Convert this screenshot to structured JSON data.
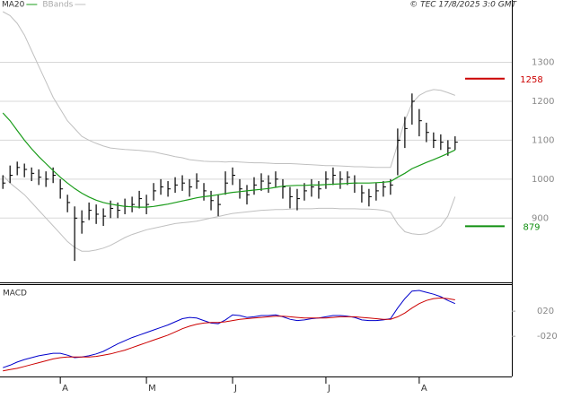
{
  "chart_data": [
    {
      "type": "ohlc",
      "credit": "© TEC 17/8/2025 3:0 GMT",
      "xlim": [
        -0.4,
        70.9
      ],
      "xticks": [
        {
          "value": 8,
          "label": "A"
        },
        {
          "value": 20,
          "label": "M"
        },
        {
          "value": 32,
          "label": "J"
        },
        {
          "value": 45,
          "label": "J"
        },
        {
          "value": 58,
          "label": "A"
        }
      ],
      "ylim": [
        735,
        1460
      ],
      "yticks": [
        900,
        1000,
        1100,
        1200,
        1300
      ],
      "grid": true,
      "color": "#000000",
      "high": [
        1010,
        1035,
        1045,
        1040,
        1030,
        1025,
        1020,
        1030,
        1000,
        960,
        930,
        920,
        940,
        935,
        925,
        945,
        940,
        950,
        955,
        970,
        960,
        990,
        1000,
        995,
        1005,
        1010,
        1000,
        1015,
        990,
        970,
        960,
        1020,
        1030,
        1000,
        985,
        1005,
        1015,
        1010,
        1020,
        1000,
        980,
        975,
        990,
        1000,
        995,
        1020,
        1030,
        1020,
        1020,
        1010,
        985,
        975,
        990,
        995,
        1000,
        1130,
        1160,
        1220,
        1180,
        1145,
        1120,
        1115,
        1100,
        1110
      ],
      "low": [
        975,
        990,
        1010,
        1005,
        995,
        985,
        980,
        990,
        950,
        915,
        790,
        860,
        895,
        885,
        880,
        900,
        900,
        910,
        915,
        925,
        910,
        945,
        960,
        955,
        965,
        970,
        955,
        975,
        945,
        920,
        905,
        960,
        985,
        950,
        935,
        960,
        970,
        965,
        980,
        950,
        925,
        920,
        945,
        955,
        950,
        975,
        985,
        975,
        985,
        965,
        940,
        930,
        945,
        955,
        960,
        1010,
        1080,
        1140,
        1110,
        1095,
        1080,
        1075,
        1060,
        1075
      ],
      "close": [
        990,
        1010,
        1030,
        1025,
        1015,
        1005,
        1000,
        1010,
        975,
        940,
        900,
        890,
        920,
        910,
        905,
        925,
        920,
        930,
        935,
        950,
        935,
        970,
        980,
        975,
        985,
        990,
        980,
        995,
        970,
        945,
        935,
        990,
        1010,
        975,
        960,
        985,
        995,
        990,
        1000,
        980,
        955,
        950,
        970,
        980,
        975,
        1000,
        1010,
        1000,
        1005,
        990,
        965,
        955,
        970,
        980,
        985,
        1100,
        1130,
        1200,
        1150,
        1120,
        1100,
        1095,
        1080,
        1095
      ],
      "series": [
        {
          "name": "MA20",
          "color": "#1a9c1a",
          "values": [
            1170,
            1150,
            1125,
            1100,
            1078,
            1058,
            1040,
            1022,
            1005,
            990,
            976,
            964,
            954,
            946,
            940,
            936,
            933,
            930,
            929,
            928,
            928,
            930,
            933,
            936,
            940,
            944,
            948,
            952,
            955,
            957,
            960,
            963,
            966,
            968,
            970,
            972,
            974,
            976,
            979,
            982,
            983,
            984,
            984,
            985,
            985,
            986,
            987,
            988,
            989,
            990,
            990,
            990,
            991,
            992,
            994,
            1005,
            1015,
            1027,
            1035,
            1043,
            1050,
            1058,
            1066,
            1075
          ]
        },
        {
          "name": "BBands",
          "color": "#c0c0c0",
          "upper": [
            1430,
            1420,
            1400,
            1370,
            1330,
            1290,
            1250,
            1210,
            1180,
            1150,
            1130,
            1110,
            1100,
            1092,
            1085,
            1080,
            1078,
            1076,
            1075,
            1074,
            1072,
            1070,
            1066,
            1062,
            1058,
            1055,
            1050,
            1048,
            1046,
            1045,
            1045,
            1044,
            1045,
            1044,
            1043,
            1042,
            1042,
            1041,
            1040,
            1040,
            1040,
            1039,
            1038,
            1037,
            1036,
            1035,
            1035,
            1034,
            1033,
            1032,
            1032,
            1031,
            1030,
            1030,
            1030,
            1090,
            1150,
            1195,
            1215,
            1225,
            1230,
            1228,
            1222,
            1215
          ],
          "lower": [
            1010,
            990,
            975,
            960,
            940,
            920,
            900,
            880,
            860,
            840,
            825,
            815,
            815,
            818,
            823,
            830,
            840,
            850,
            858,
            864,
            870,
            874,
            878,
            882,
            886,
            888,
            890,
            892,
            896,
            900,
            904,
            908,
            912,
            914,
            916,
            918,
            920,
            921,
            922,
            922,
            923,
            924,
            924,
            924,
            925,
            925,
            925,
            924,
            924,
            924,
            923,
            923,
            922,
            920,
            915,
            885,
            865,
            860,
            858,
            860,
            868,
            880,
            905,
            955
          ]
        }
      ],
      "levels": [
        {
          "value": 1258,
          "color": "#cc0000"
        },
        {
          "value": 879,
          "color": "#109010"
        }
      ]
    },
    {
      "type": "line",
      "title": "MACD",
      "ylim": [
        -84,
        63
      ],
      "yticks": [
        {
          "value": 20,
          "label": "020"
        },
        {
          "value": -20,
          "label": "-020"
        }
      ],
      "series": [
        {
          "color": "#0000cc",
          "values": [
            -70,
            -66,
            -61,
            -57,
            -54,
            -51,
            -49,
            -47,
            -47,
            -50,
            -54,
            -53,
            -51,
            -48,
            -44,
            -38,
            -32,
            -27,
            -22,
            -18,
            -14,
            -10,
            -6,
            -2,
            3,
            8,
            10,
            9,
            5,
            1,
            0,
            6,
            14,
            13,
            10,
            11,
            13,
            13,
            14,
            11,
            7,
            5,
            6,
            8,
            9,
            11,
            13,
            13,
            12,
            10,
            6,
            5,
            5,
            6,
            8,
            25,
            40,
            52,
            53,
            50,
            47,
            43,
            37,
            32
          ]
        },
        {
          "color": "#cc0000",
          "values": [
            -75,
            -73,
            -71,
            -68,
            -65,
            -62,
            -59,
            -56,
            -54,
            -53,
            -53,
            -53,
            -53,
            -52,
            -50,
            -48,
            -45,
            -42,
            -38,
            -34,
            -30,
            -26,
            -22,
            -18,
            -13,
            -8,
            -4,
            -1,
            1,
            2,
            2,
            3,
            5,
            7,
            8,
            9,
            10,
            11,
            12,
            12,
            11,
            10,
            9,
            9,
            9,
            9,
            10,
            11,
            11,
            11,
            10,
            9,
            8,
            7,
            7,
            11,
            17,
            25,
            32,
            37,
            40,
            41,
            40,
            38
          ]
        }
      ]
    }
  ]
}
